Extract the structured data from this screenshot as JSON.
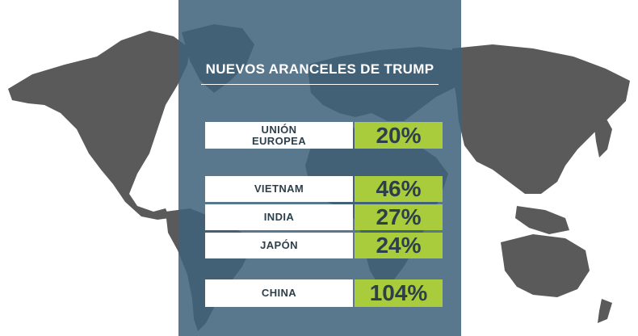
{
  "title": "NUEVOS ARANCELES DE TRUMP",
  "colors": {
    "map_land": "#5a5a5a",
    "panel": "#3e627a",
    "value_box": "#a9cc3d",
    "country_box": "#ffffff",
    "text_dark": "#2d3f4b"
  },
  "chart_data": {
    "type": "table",
    "title": "NUEVOS ARANCELES DE TRUMP",
    "rows": [
      {
        "country": "UNIÓN\nEUROPEA",
        "value": "20%"
      },
      {
        "country": "VIETNAM",
        "value": "46%"
      },
      {
        "country": "INDIA",
        "value": "27%"
      },
      {
        "country": "JAPÓN",
        "value": "24%"
      },
      {
        "country": "CHINA",
        "value": "104%"
      }
    ]
  }
}
